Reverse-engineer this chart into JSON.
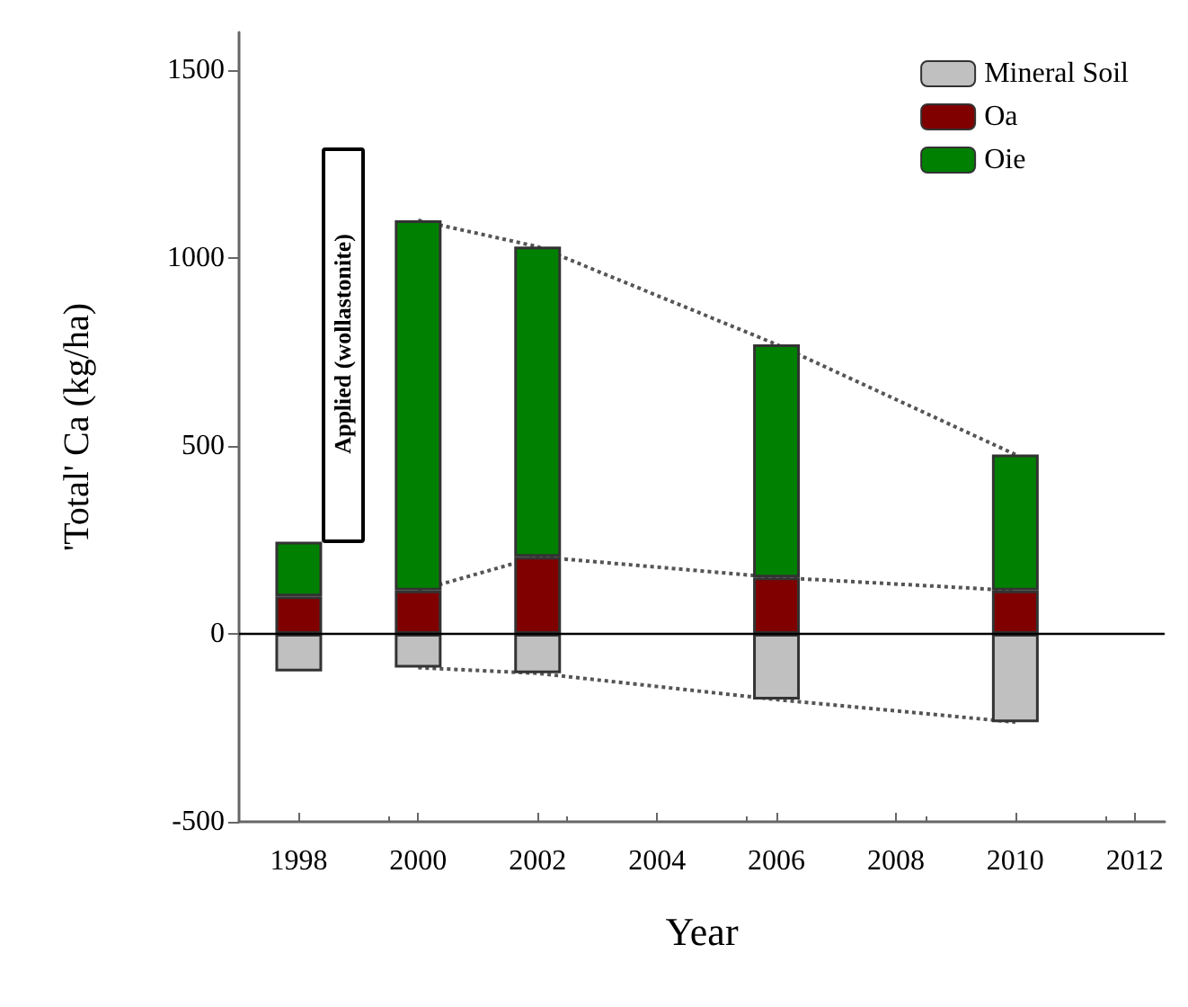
{
  "chart_data": {
    "type": "bar",
    "stacked": true,
    "xlabel": "Year",
    "ylabel": "'Total' Ca (kg/ha)",
    "x": [
      1998,
      2000,
      2002,
      2006,
      2010
    ],
    "series": [
      {
        "name": "Mineral Soil",
        "color": "#c0c0c0",
        "values": [
          -100,
          -90,
          -105,
          -175,
          -235
        ]
      },
      {
        "name": "Oa",
        "color": "#800000",
        "values": [
          100,
          115,
          205,
          150,
          115
        ]
      },
      {
        "name": "Oie",
        "color": "#008000",
        "values": [
          145,
          985,
          825,
          620,
          362
        ]
      },
      {
        "type": "line",
        "color": "#555555",
        "line_style": "dotted",
        "marker": "none",
        "x": [
          2000,
          2002,
          2006,
          2010
        ],
        "values": [
          1100,
          1030,
          770,
          477
        ]
      },
      {
        "type": "line",
        "color": "#555555",
        "line_style": "dotted",
        "marker": "none",
        "x": [
          2000,
          2002,
          2006,
          2010
        ],
        "values": [
          115,
          205,
          150,
          115
        ]
      },
      {
        "type": "line",
        "color": "#555555",
        "line_style": "dotted",
        "marker": "none",
        "x": [
          2000,
          2002,
          2006,
          2010
        ],
        "values": [
          -90,
          -105,
          -175,
          -235
        ]
      }
    ],
    "xlim": [
      1997,
      2012.5
    ],
    "xticks": [
      1998,
      2000,
      2002,
      2004,
      2006,
      2008,
      2010,
      2012
    ],
    "ylim": [
      -500,
      1600
    ],
    "yticks": [
      -500,
      0,
      500,
      1000,
      1500
    ],
    "ref_lines": [
      {
        "axis": "y",
        "value": 0,
        "color": "#000000"
      }
    ],
    "annotations": [
      "Applied (wollastonite)"
    ],
    "legend": "top right",
    "grid": false
  }
}
